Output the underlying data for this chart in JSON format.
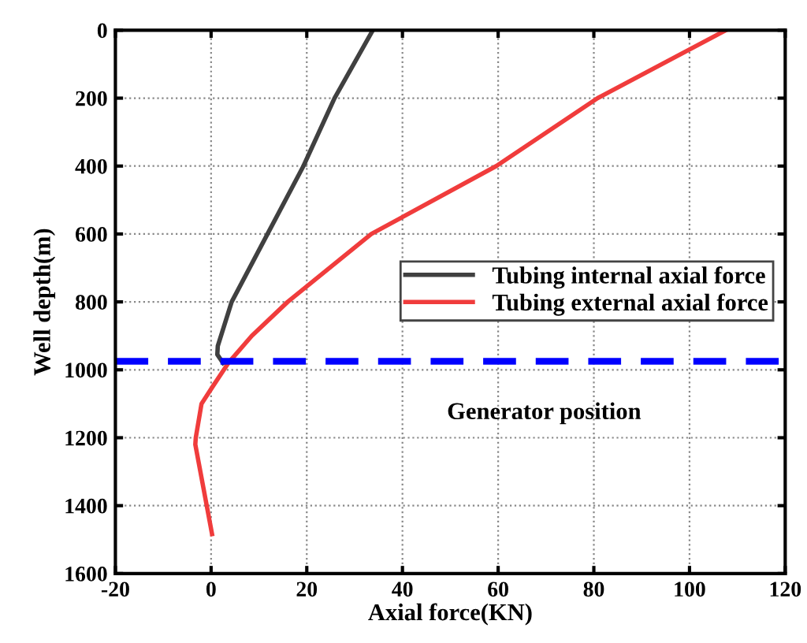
{
  "chart_data": {
    "type": "line",
    "xlabel": "Axial force(KN)",
    "ylabel": "Well depth(m)",
    "xlim": [
      -20,
      120
    ],
    "xticks": [
      -20,
      0,
      20,
      40,
      60,
      80,
      100,
      120
    ],
    "ylim": [
      1600,
      0
    ],
    "yticks": [
      0,
      200,
      400,
      600,
      800,
      1000,
      1200,
      1400,
      1600
    ],
    "grid": true,
    "legend": "right",
    "line_style": "solid",
    "marker": "none",
    "series": [
      {
        "name": "Tubing internal axial force",
        "color": "#404040",
        "x": [
          33.8,
          25.8,
          19.3,
          11.8,
          4.3,
          1.4,
          1.3,
          2.5
        ],
        "values": [
          0,
          200,
          400,
          600,
          800,
          930,
          955,
          980
        ]
      },
      {
        "name": "Tubing external axial force",
        "color": "#f03c3c",
        "x": [
          107.6,
          80.8,
          59.6,
          33.5,
          16,
          8.5,
          3.6,
          0.3,
          -2,
          -3.2,
          -3.3,
          0.2
        ],
        "values": [
          0,
          200,
          400,
          600,
          800,
          900,
          980,
          1050,
          1100,
          1200,
          1220,
          1484
        ]
      }
    ],
    "ref_lines": [
      {
        "axis": "y",
        "value": 975,
        "color": "#0000ff",
        "line_style": "dashed"
      }
    ],
    "annotations": [
      "Generator position"
    ]
  }
}
